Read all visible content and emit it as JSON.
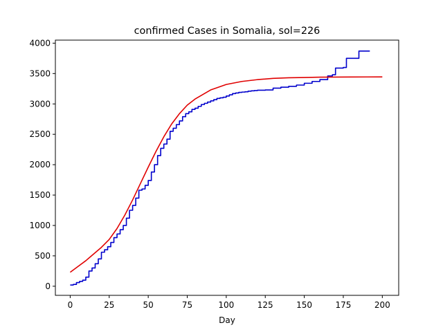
{
  "chart_data": {
    "type": "line",
    "title": "confirmed Cases in Somalia, sol=226",
    "xlabel": "Day",
    "ylabel": "",
    "xlim": [
      -9.5,
      210.5
    ],
    "ylim": [
      -150,
      4050
    ],
    "xticks": [
      0,
      25,
      50,
      75,
      100,
      125,
      150,
      175,
      200
    ],
    "yticks": [
      0,
      500,
      1000,
      1500,
      2000,
      2500,
      3000,
      3500,
      4000
    ],
    "grid": false,
    "series": [
      {
        "color": "#0000cc",
        "style": "step",
        "x": [
          0,
          2,
          4,
          6,
          8,
          10,
          12,
          14,
          16,
          18,
          20,
          22,
          24,
          26,
          28,
          30,
          32,
          34,
          36,
          38,
          40,
          42,
          44,
          46,
          48,
          50,
          52,
          54,
          56,
          58,
          60,
          62,
          64,
          66,
          68,
          70,
          72,
          74,
          76,
          78,
          80,
          82,
          84,
          86,
          88,
          90,
          92,
          94,
          96,
          98,
          100,
          102,
          104,
          106,
          108,
          110,
          112,
          114,
          116,
          118,
          120,
          125,
          130,
          135,
          140,
          145,
          150,
          155,
          160,
          165,
          168,
          170,
          175,
          177,
          180,
          185,
          192
        ],
        "y": [
          20,
          30,
          60,
          80,
          100,
          150,
          250,
          300,
          370,
          450,
          560,
          600,
          650,
          720,
          800,
          860,
          930,
          1000,
          1120,
          1250,
          1330,
          1450,
          1580,
          1600,
          1660,
          1740,
          1880,
          2000,
          2150,
          2270,
          2340,
          2420,
          2550,
          2600,
          2660,
          2720,
          2790,
          2840,
          2870,
          2910,
          2930,
          2960,
          2990,
          3010,
          3030,
          3050,
          3070,
          3090,
          3100,
          3110,
          3130,
          3150,
          3170,
          3180,
          3190,
          3195,
          3200,
          3210,
          3215,
          3220,
          3225,
          3230,
          3260,
          3275,
          3290,
          3310,
          3340,
          3370,
          3400,
          3460,
          3480,
          3590,
          3600,
          3750,
          3750,
          3870,
          3870
        ]
      },
      {
        "color": "#e00000",
        "style": "line",
        "x": [
          0,
          10,
          20,
          25,
          30,
          35,
          40,
          45,
          50,
          55,
          60,
          65,
          70,
          75,
          80,
          90,
          100,
          110,
          120,
          130,
          140,
          150,
          160,
          170,
          180,
          190,
          200
        ],
        "y": [
          230,
          420,
          640,
          770,
          950,
          1170,
          1420,
          1690,
          1960,
          2220,
          2460,
          2670,
          2840,
          2980,
          3080,
          3230,
          3320,
          3370,
          3400,
          3420,
          3430,
          3435,
          3440,
          3442,
          3443,
          3444,
          3445
        ]
      }
    ]
  }
}
